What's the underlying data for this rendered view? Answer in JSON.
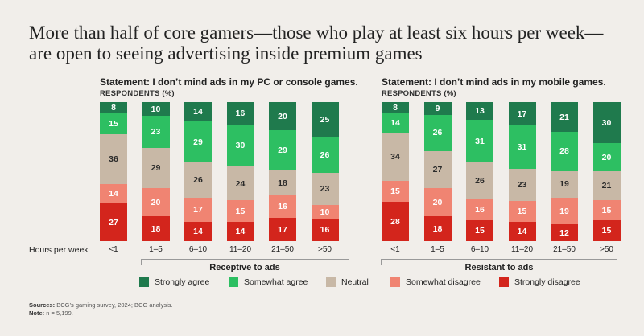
{
  "title": "More than half of core gamers—those who play at least six hours per week—are open to seeing advertising inside premium games",
  "colors": {
    "strongly_agree": "#1f7a4d",
    "somewhat_agree": "#2dbf62",
    "neutral": "#c8b8a6",
    "somewhat_disagree": "#f08472",
    "strongly_disagree": "#d3251c"
  },
  "x_axis_label": "Hours per week",
  "legend": [
    "Strongly agree",
    "Somewhat agree",
    "Neutral",
    "Somewhat disagree",
    "Strongly disagree"
  ],
  "chart_data": [
    {
      "type": "bar",
      "stacked": true,
      "title": "Statement: I don’t mind ads in my PC or console games.",
      "ylabel": "RESPONDENTS (%)",
      "group_label": "Receptive to ads",
      "categories": [
        "<1",
        "1–5",
        "6–10",
        "11–20",
        "21–50",
        ">50"
      ],
      "series": [
        {
          "name": "Strongly agree",
          "values": [
            8,
            10,
            14,
            16,
            20,
            25
          ]
        },
        {
          "name": "Somewhat agree",
          "values": [
            15,
            23,
            29,
            30,
            29,
            26
          ]
        },
        {
          "name": "Neutral",
          "values": [
            36,
            29,
            26,
            24,
            18,
            23
          ]
        },
        {
          "name": "Somewhat disagree",
          "values": [
            14,
            20,
            17,
            15,
            16,
            10
          ]
        },
        {
          "name": "Strongly disagree",
          "values": [
            27,
            18,
            14,
            14,
            17,
            16
          ]
        }
      ]
    },
    {
      "type": "bar",
      "stacked": true,
      "title": "Statement: I don’t mind ads in my mobile games.",
      "ylabel": "RESPONDENTS (%)",
      "group_label": "Resistant to ads",
      "categories": [
        "<1",
        "1–5",
        "6–10",
        "11–20",
        "21–50",
        ">50"
      ],
      "series": [
        {
          "name": "Strongly agree",
          "values": [
            8,
            9,
            13,
            17,
            21,
            30
          ]
        },
        {
          "name": "Somewhat agree",
          "values": [
            14,
            26,
            31,
            31,
            28,
            20
          ]
        },
        {
          "name": "Neutral",
          "values": [
            34,
            27,
            26,
            23,
            19,
            21
          ]
        },
        {
          "name": "Somewhat disagree",
          "values": [
            15,
            20,
            16,
            15,
            19,
            15
          ]
        },
        {
          "name": "Strongly disagree",
          "values": [
            28,
            18,
            15,
            14,
            12,
            15
          ]
        }
      ]
    }
  ],
  "sources_label": "Sources:",
  "sources_text": "BCG’s gaming survey, 2024; BCG analysis.",
  "note_label": "Note:",
  "note_text": "n = 5,199."
}
